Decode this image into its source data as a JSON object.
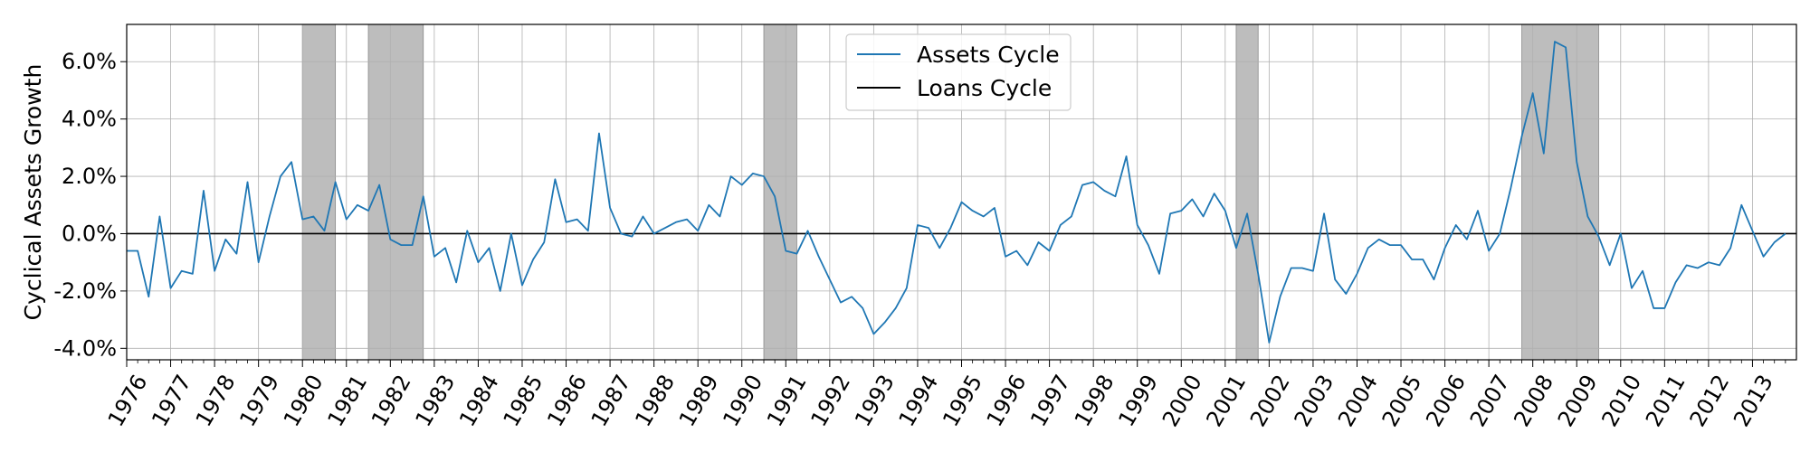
{
  "chart_data": {
    "type": "line",
    "title": "",
    "xlabel": "",
    "ylabel": "Cyclical Assets Growth",
    "ylim": [
      -4.4,
      7.3
    ],
    "xlim": [
      1976.0,
      2014.0
    ],
    "y_ticks": [
      -4,
      -2,
      0,
      2,
      4,
      6
    ],
    "y_tick_labels": [
      "-4.0%",
      "-2.0%",
      "0.0%",
      "2.0%",
      "4.0%",
      "6.0%"
    ],
    "x_tick_labels": [
      "1976",
      "1977",
      "1978",
      "1979",
      "1980",
      "1981",
      "1982",
      "1983",
      "1984",
      "1985",
      "1986",
      "1987",
      "1988",
      "1989",
      "1990",
      "1991",
      "1992",
      "1993",
      "1994",
      "1995",
      "1996",
      "1997",
      "1998",
      "1999",
      "2000",
      "2001",
      "2002",
      "2003",
      "2004",
      "2005",
      "2006",
      "2007",
      "2008",
      "2009",
      "2010",
      "2011",
      "2012",
      "2013"
    ],
    "grid": true,
    "legend_position": "top-center",
    "recessions": [
      {
        "start": 1980.0,
        "end": 1980.75
      },
      {
        "start": 1981.5,
        "end": 1982.75
      },
      {
        "start": 1990.5,
        "end": 1991.25
      },
      {
        "start": 2001.25,
        "end": 2001.75
      },
      {
        "start": 2007.75,
        "end": 2009.5
      }
    ],
    "series": [
      {
        "name": "Assets Cycle",
        "color": "#1f77b4",
        "x": [
          1976.0,
          1976.25,
          1976.5,
          1976.75,
          1977.0,
          1977.25,
          1977.5,
          1977.75,
          1978.0,
          1978.25,
          1978.5,
          1978.75,
          1979.0,
          1979.25,
          1979.5,
          1979.75,
          1980.0,
          1980.25,
          1980.5,
          1980.75,
          1981.0,
          1981.25,
          1981.5,
          1981.75,
          1982.0,
          1982.25,
          1982.5,
          1982.75,
          1983.0,
          1983.25,
          1983.5,
          1983.75,
          1984.0,
          1984.25,
          1984.5,
          1984.75,
          1985.0,
          1985.25,
          1985.5,
          1985.75,
          1986.0,
          1986.25,
          1986.5,
          1986.75,
          1987.0,
          1987.25,
          1987.5,
          1987.75,
          1988.0,
          1988.25,
          1988.5,
          1988.75,
          1989.0,
          1989.25,
          1989.5,
          1989.75,
          1990.0,
          1990.25,
          1990.5,
          1990.75,
          1991.0,
          1991.25,
          1991.5,
          1991.75,
          1992.0,
          1992.25,
          1992.5,
          1992.75,
          1993.0,
          1993.25,
          1993.5,
          1993.75,
          1994.0,
          1994.25,
          1994.5,
          1994.75,
          1995.0,
          1995.25,
          1995.5,
          1995.75,
          1996.0,
          1996.25,
          1996.5,
          1996.75,
          1997.0,
          1997.25,
          1997.5,
          1997.75,
          1998.0,
          1998.25,
          1998.5,
          1998.75,
          1999.0,
          1999.25,
          1999.5,
          1999.75,
          2000.0,
          2000.25,
          2000.5,
          2000.75,
          2001.0,
          2001.25,
          2001.5,
          2001.75,
          2002.0,
          2002.25,
          2002.5,
          2002.75,
          2003.0,
          2003.25,
          2003.5,
          2003.75,
          2004.0,
          2004.25,
          2004.5,
          2004.75,
          2005.0,
          2005.25,
          2005.5,
          2005.75,
          2006.0,
          2006.25,
          2006.5,
          2006.75,
          2007.0,
          2007.25,
          2007.5,
          2007.75,
          2008.0,
          2008.25,
          2008.5,
          2008.75,
          2009.0,
          2009.25,
          2009.5,
          2009.75,
          2010.0,
          2010.25,
          2010.5,
          2010.75,
          2011.0,
          2011.25,
          2011.5,
          2011.75,
          2012.0,
          2012.25,
          2012.5,
          2012.75,
          2013.0,
          2013.25,
          2013.5,
          2013.75
        ],
        "values": [
          -0.6,
          -0.6,
          -2.2,
          0.6,
          -1.9,
          -1.3,
          -1.4,
          1.5,
          -1.3,
          -0.2,
          -0.7,
          1.8,
          -1.0,
          0.6,
          2.0,
          2.5,
          0.5,
          0.6,
          0.1,
          1.8,
          0.5,
          1.0,
          0.8,
          1.7,
          -0.2,
          -0.4,
          -0.4,
          1.3,
          -0.8,
          -0.5,
          -1.7,
          0.1,
          -1.0,
          -0.5,
          -2.0,
          0.0,
          -1.8,
          -0.9,
          -0.3,
          1.9,
          0.4,
          0.5,
          0.1,
          3.5,
          0.9,
          0.0,
          -0.1,
          0.6,
          0.0,
          0.2,
          0.4,
          0.5,
          0.1,
          1.0,
          0.6,
          2.0,
          1.7,
          2.1,
          2.0,
          1.3,
          -0.6,
          -0.7,
          0.1,
          -0.8,
          -1.6,
          -2.4,
          -2.2,
          -2.6,
          -3.5,
          -3.1,
          -2.6,
          -1.9,
          0.3,
          0.2,
          -0.5,
          0.2,
          1.1,
          0.8,
          0.6,
          0.9,
          -0.8,
          -0.6,
          -1.1,
          -0.3,
          -0.6,
          0.3,
          0.6,
          1.7,
          1.8,
          1.5,
          1.3,
          2.7,
          0.3,
          -0.4,
          -1.4,
          0.7,
          0.8,
          1.2,
          0.6,
          1.4,
          0.8,
          -0.5,
          0.7,
          -1.4,
          -3.8,
          -2.2,
          -1.2,
          -1.2,
          -1.3,
          0.7,
          -1.6,
          -2.1,
          -1.4,
          -0.5,
          -0.2,
          -0.4,
          -0.4,
          -0.9,
          -0.9,
          -1.6,
          -0.5,
          0.3,
          -0.2,
          0.8,
          -0.6,
          0.0,
          1.6,
          3.4,
          4.9,
          2.8,
          6.7,
          6.5,
          2.5,
          0.6,
          -0.1,
          -1.1,
          0.0,
          -1.9,
          -1.3,
          -2.6,
          -2.6,
          -1.7,
          -1.1,
          -1.2,
          -1.0,
          -1.1,
          -0.5,
          1.0,
          0.1,
          -0.8,
          -0.3,
          0.0
        ]
      },
      {
        "name": "Loans Cycle",
        "color": "#000000",
        "x": [
          1976.0,
          2014.0
        ],
        "values": [
          0.0,
          0.0
        ]
      }
    ]
  }
}
